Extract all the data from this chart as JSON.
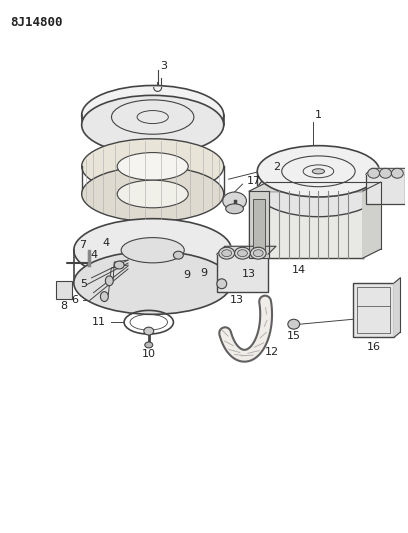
{
  "title": "8J14800",
  "bg_color": "#ffffff",
  "line_color": "#444444",
  "text_color": "#222222",
  "fig_w": 4.08,
  "fig_h": 5.33,
  "dpi": 100
}
